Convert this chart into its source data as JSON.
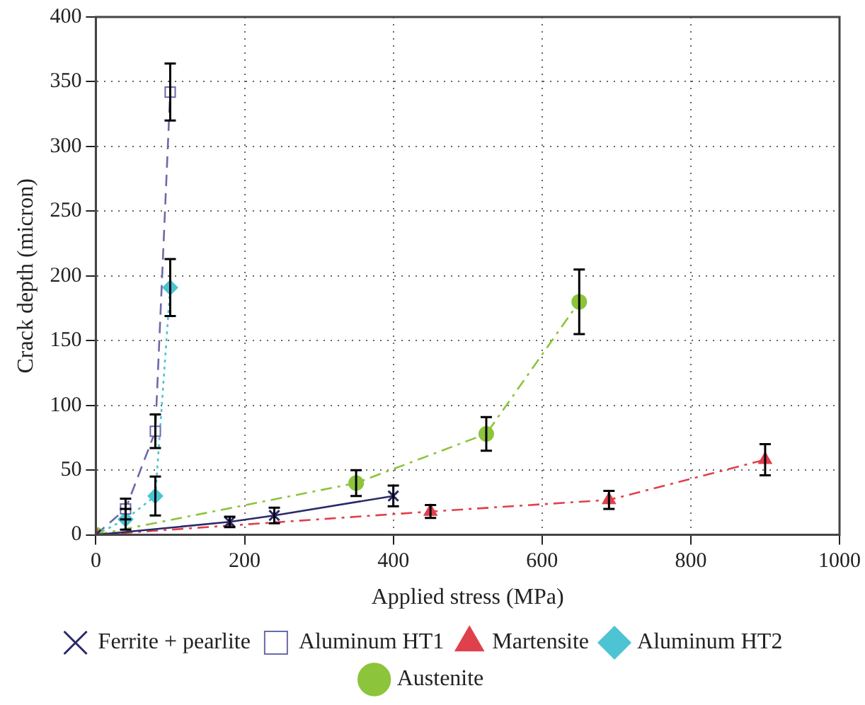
{
  "chart_data": {
    "type": "line",
    "xlabel": "Applied stress (MPa)",
    "ylabel": "Crack depth (micron)",
    "xlim": [
      0,
      1000
    ],
    "xticks": [
      0,
      200,
      400,
      600,
      800,
      1000
    ],
    "ylim": [
      0,
      400
    ],
    "yticks": [
      0,
      50,
      100,
      150,
      200,
      250,
      300,
      350,
      400
    ],
    "grid": true,
    "legend": "bottom",
    "series": [
      {
        "name": "Ferrite + pearlite",
        "color": "#2a2a6a",
        "marker": "cross",
        "line_style": "solid",
        "x": [
          0,
          180,
          240,
          400
        ],
        "values": [
          0,
          10,
          15,
          30
        ],
        "errors": [
          null,
          4,
          6,
          8
        ]
      },
      {
        "name": "Martensite",
        "color": "#e0404c",
        "marker": "triangle",
        "line_style": "dashdot",
        "x": [
          0,
          450,
          690,
          900
        ],
        "values": [
          0,
          18,
          27,
          58
        ],
        "errors": [
          null,
          5,
          7,
          12
        ]
      },
      {
        "name": "Austenite",
        "color": "#8cc43c",
        "marker": "circle",
        "line_style": "dashdot",
        "x": [
          0,
          350,
          525,
          650
        ],
        "values": [
          0,
          40,
          78,
          180
        ],
        "errors": [
          null,
          10,
          13,
          25
        ]
      },
      {
        "name": "Aluminum HT1",
        "color": "#6a6aaa",
        "marker": "square",
        "line_style": "dashed",
        "x": [
          0,
          40,
          80,
          100
        ],
        "values": [
          0,
          20,
          80,
          342
        ],
        "errors": [
          null,
          8,
          13,
          22
        ]
      },
      {
        "name": "Aluminum HT2",
        "color": "#4cc4d4",
        "marker": "diamond",
        "line_style": "dotted",
        "x": [
          0,
          40,
          80,
          100
        ],
        "values": [
          0,
          12,
          30,
          191
        ],
        "errors": [
          null,
          8,
          15,
          22
        ]
      }
    ]
  }
}
